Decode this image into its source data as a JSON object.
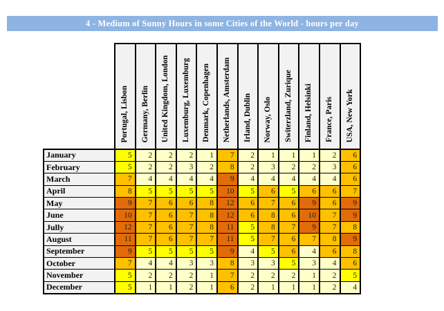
{
  "title_bar": {
    "text": "4 - Medium of Sunny Hours in some Cities of the World - hours per day",
    "bg": "#8DB4E2",
    "text_color": "#FFFFFF"
  },
  "chart_data": {
    "type": "heatmap",
    "title": "4 - Medium of Sunny Hours in some Cities of the World - hours per day",
    "unit": "hours per day",
    "columns": [
      "Portugal, Lisbon",
      "Germany, Berlin",
      "United Kingdom, London",
      "Luxemburg, Luxemburg",
      "Denmark, Copenhagen",
      "Netherlands, Amsterdam",
      "Irland, Dublin",
      "Norway, Oslo",
      "Switerzland, Zurique",
      "Finland, Helsinki",
      "France, Paris",
      "USA, New York"
    ],
    "rows": [
      "January",
      "February",
      "March",
      "April",
      "May",
      "June",
      "Jully",
      "August",
      "September",
      "October",
      "November",
      "December"
    ],
    "values": [
      [
        5,
        2,
        2,
        2,
        1,
        7,
        2,
        1,
        1,
        1,
        2,
        6
      ],
      [
        5,
        2,
        2,
        3,
        2,
        8,
        2,
        3,
        2,
        2,
        3,
        6
      ],
      [
        7,
        4,
        4,
        4,
        4,
        9,
        4,
        4,
        4,
        4,
        4,
        6
      ],
      [
        8,
        5,
        5,
        5,
        5,
        10,
        5,
        6,
        5,
        6,
        6,
        7
      ],
      [
        9,
        7,
        6,
        6,
        8,
        12,
        6,
        7,
        6,
        9,
        6,
        9
      ],
      [
        10,
        7,
        6,
        7,
        8,
        12,
        6,
        8,
        6,
        10,
        7,
        9
      ],
      [
        12,
        7,
        6,
        7,
        8,
        11,
        5,
        8,
        7,
        9,
        7,
        8
      ],
      [
        11,
        7,
        6,
        7,
        7,
        11,
        5,
        7,
        6,
        7,
        8,
        9
      ],
      [
        9,
        5,
        5,
        5,
        5,
        9,
        4,
        5,
        6,
        4,
        6,
        8
      ],
      [
        7,
        4,
        4,
        3,
        3,
        8,
        3,
        3,
        5,
        3,
        4,
        6
      ],
      [
        5,
        2,
        2,
        2,
        1,
        7,
        2,
        2,
        2,
        1,
        2,
        5
      ],
      [
        5,
        1,
        1,
        2,
        1,
        6,
        2,
        1,
        1,
        1,
        2,
        4
      ]
    ],
    "value_range": [
      1,
      12
    ],
    "color_scale": [
      {
        "label": "1-4",
        "max": 4,
        "fill": "#FFFFC9"
      },
      {
        "label": "5",
        "max": 5,
        "fill": "#FFFF00"
      },
      {
        "label": "6-8",
        "max": 8,
        "fill": "#FFC000"
      },
      {
        "label": "9-12",
        "max": 12,
        "fill": "#E26B0A"
      }
    ],
    "header_fill": "#F2F2F2",
    "border_color": "#000000"
  }
}
